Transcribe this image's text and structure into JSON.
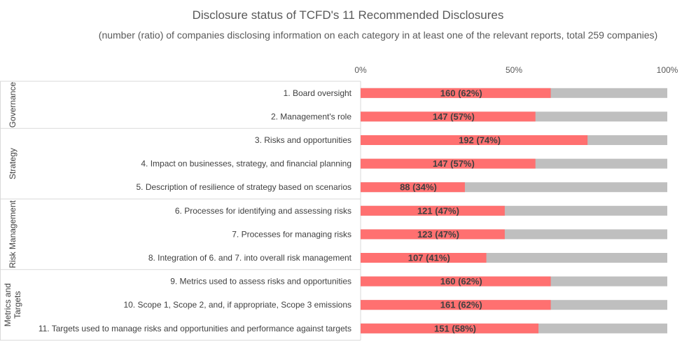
{
  "chart_data": {
    "type": "bar",
    "title": "Disclosure status of TCFD's 11 Recommended Disclosures",
    "subtitle": "(number (ratio) of companies disclosing information on each category in at least one of the relevant reports, total 259 companies)",
    "xlim": [
      0,
      100
    ],
    "ticks": [
      "0%",
      "50%",
      "100%"
    ],
    "tick_values": [
      0,
      50,
      100
    ],
    "grid": false,
    "legend": "none",
    "groups": [
      {
        "name": "Governance",
        "count": 2
      },
      {
        "name": "Strategy",
        "count": 3
      },
      {
        "name": "Risk Management",
        "count": 3
      },
      {
        "name": "Metrics and Targets",
        "count": 3
      }
    ],
    "categories": [
      "1. Board oversight",
      "2. Management's role",
      "3. Risks and opportunities",
      "4. Impact on businesses, strategy, and financial planning",
      "5. Description of resilience of strategy based on scenarios",
      "6. Processes for identifying and assessing risks",
      "7. Processes for managing risks",
      "8. Integration of 6. and 7. into overall risk management",
      "9. Metrics used to assess risks and opportunities",
      "10. Scope 1, Scope 2, and, if appropriate, Scope 3 emissions",
      "11. Targets used to manage risks and opportunities and performance against targets"
    ],
    "values": [
      62,
      57,
      74,
      57,
      34,
      47,
      47,
      41,
      62,
      62,
      58
    ],
    "data_labels": [
      "160 (62%)",
      "147 (57%)",
      "192 (74%)",
      "147 (57%)",
      "88 (34%)",
      "121 (47%)",
      "123 (47%)",
      "107 (41%)",
      "160 (62%)",
      "161 (62%)",
      "151 (58%)"
    ],
    "colors": {
      "disclosed": "#ff7070",
      "remainder": "#bfbfbf",
      "divider": "#d9d9d9"
    }
  }
}
